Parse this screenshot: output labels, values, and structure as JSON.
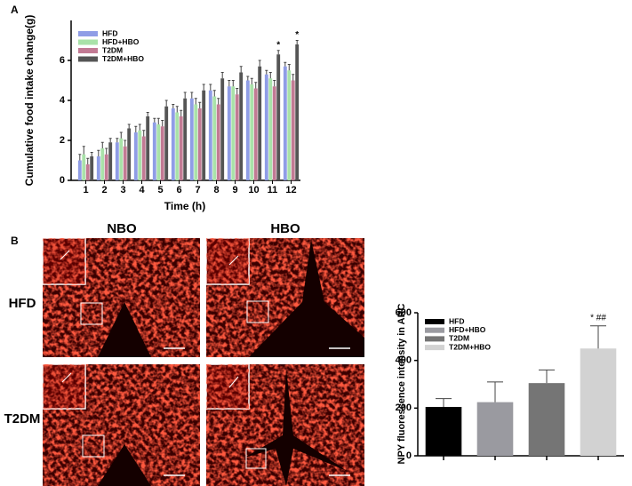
{
  "figure": {
    "panel_a": "A",
    "panel_b": "B",
    "columns": [
      "NBO",
      "HBO"
    ],
    "rows": [
      "HFD",
      "T2DM"
    ]
  },
  "chart_data": [
    {
      "type": "grouped-bar",
      "x_label": "Time (h)",
      "y_label": "Cumulative food intake change(g)",
      "categories": [
        "1",
        "2",
        "3",
        "4",
        "5",
        "6",
        "7",
        "8",
        "9",
        "10",
        "11",
        "12"
      ],
      "series": [
        {
          "name": "HFD",
          "color": "#8f9de6",
          "values": [
            1.0,
            1.2,
            1.9,
            2.4,
            2.9,
            3.6,
            4.1,
            4.5,
            4.7,
            5.0,
            5.3,
            5.7
          ],
          "errors": [
            0.3,
            0.3,
            0.2,
            0.3,
            0.2,
            0.2,
            0.3,
            0.3,
            0.3,
            0.2,
            0.2,
            0.2
          ]
        },
        {
          "name": "HFD+HBO",
          "color": "#a9e2a9",
          "values": [
            1.3,
            1.6,
            2.1,
            2.5,
            2.8,
            3.4,
            3.8,
            4.2,
            4.7,
            4.8,
            5.1,
            5.5
          ],
          "errors": [
            0.4,
            0.3,
            0.3,
            0.3,
            0.3,
            0.3,
            0.3,
            0.3,
            0.3,
            0.3,
            0.3,
            0.3
          ]
        },
        {
          "name": "T2DM",
          "color": "#c27a94",
          "values": [
            0.8,
            1.3,
            1.7,
            2.2,
            2.7,
            3.2,
            3.6,
            3.8,
            4.3,
            4.6,
            4.7,
            5.0
          ],
          "errors": [
            0.3,
            0.3,
            0.3,
            0.3,
            0.3,
            0.3,
            0.3,
            0.3,
            0.3,
            0.3,
            0.3,
            0.3
          ]
        },
        {
          "name": "T2DM+HBO",
          "color": "#555555",
          "values": [
            1.2,
            1.9,
            2.6,
            3.2,
            3.7,
            4.1,
            4.5,
            5.1,
            5.4,
            5.7,
            6.3,
            6.8
          ],
          "errors": [
            0.2,
            0.2,
            0.2,
            0.2,
            0.3,
            0.3,
            0.3,
            0.3,
            0.3,
            0.3,
            0.2,
            0.2
          ]
        }
      ],
      "annotations": [
        {
          "text": "*",
          "category": "11",
          "series": "T2DM+HBO"
        },
        {
          "text": "*",
          "category": "12",
          "series": "T2DM+HBO"
        }
      ],
      "ylim": [
        0,
        8
      ],
      "yticks": [
        0,
        2,
        4,
        6
      ]
    },
    {
      "type": "bar",
      "y_label": "NPY fluorescence intensity in ARC",
      "categories": [
        "HFD",
        "HFD+HBO",
        "T2DM",
        "T2DM+HBO"
      ],
      "colors": [
        "#000000",
        "#9a9aa0",
        "#757575",
        "#d2d2d2"
      ],
      "values": [
        205,
        225,
        305,
        450
      ],
      "errors": [
        35,
        85,
        55,
        95
      ],
      "annotations": [
        {
          "text": "* ##",
          "category": "T2DM+HBO"
        }
      ],
      "ylim": [
        0,
        600
      ],
      "yticks": [
        0,
        200,
        400,
        600
      ]
    }
  ]
}
